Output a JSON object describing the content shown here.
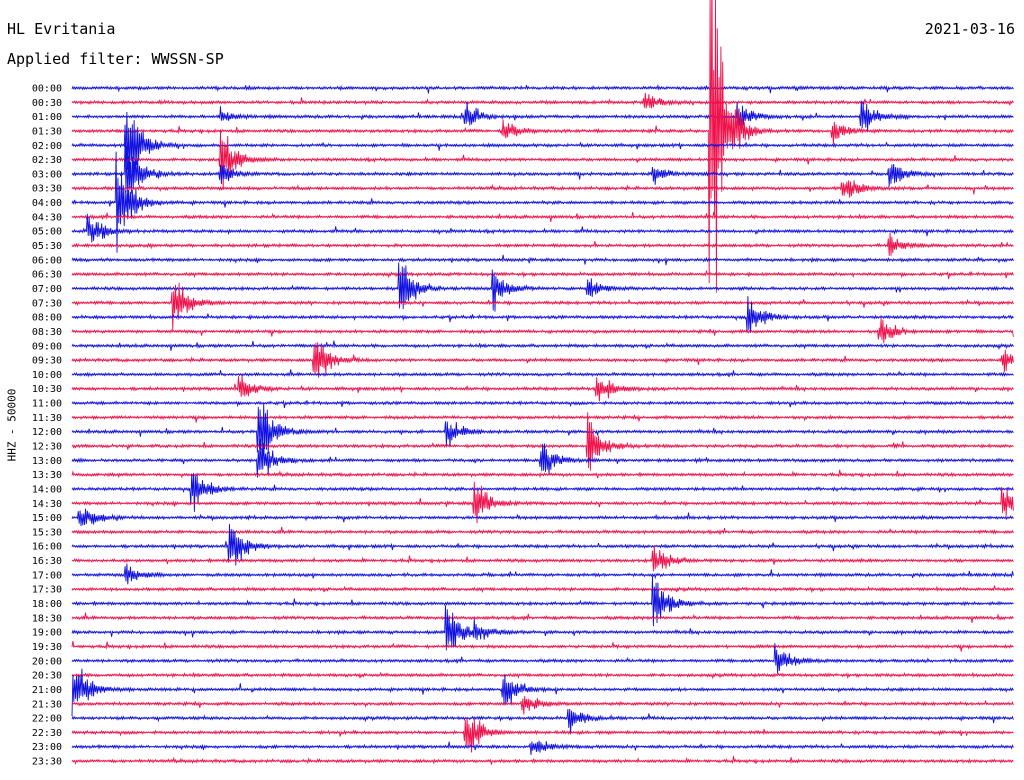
{
  "header": {
    "station": "HL Evritania",
    "date": "2021-03-16",
    "filter": "Applied filter: WWSSN-SP"
  },
  "colors": {
    "trace_a": "#1010e0",
    "trace_b": "#f0104a",
    "text": "#000000"
  },
  "chart_data": {
    "type": "line",
    "title": "HL Evritania",
    "ylabel": "HHZ - 50000",
    "xlabel": "",
    "y_tick_labels": [
      "00:00",
      "00:30",
      "01:00",
      "01:30",
      "02:00",
      "02:30",
      "03:00",
      "03:30",
      "04:00",
      "04:30",
      "05:00",
      "05:30",
      "06:00",
      "06:30",
      "07:00",
      "07:30",
      "08:00",
      "08:30",
      "09:00",
      "09:30",
      "10:00",
      "10:30",
      "11:00",
      "11:30",
      "12:00",
      "12:30",
      "13:00",
      "13:30",
      "14:00",
      "14:30",
      "15:00",
      "15:30",
      "16:00",
      "16:30",
      "17:00",
      "17:30",
      "18:00",
      "18:30",
      "19:00",
      "19:30",
      "20:00",
      "20:30",
      "21:00",
      "21:30",
      "22:00",
      "22:30",
      "23:00",
      "23:30"
    ],
    "trace_colors": [
      "#1010e0",
      "#f0104a"
    ],
    "x_range_minutes": [
      0,
      30
    ],
    "events": [
      {
        "row": 1,
        "t": 0.61,
        "amp": 1.0
      },
      {
        "row": 2,
        "t": 0.16,
        "amp": 0.6
      },
      {
        "row": 2,
        "t": 0.42,
        "amp": 1.4
      },
      {
        "row": 2,
        "t": 0.71,
        "amp": 1.6
      },
      {
        "row": 2,
        "t": 0.84,
        "amp": 2.0
      },
      {
        "row": 3,
        "t": 0.46,
        "amp": 1.0
      },
      {
        "row": 3,
        "t": 0.68,
        "amp": 18.0
      },
      {
        "row": 3,
        "t": 0.81,
        "amp": 1.0
      },
      {
        "row": 4,
        "t": 0.06,
        "amp": 5.0
      },
      {
        "row": 5,
        "t": 0.16,
        "amp": 3.0
      },
      {
        "row": 6,
        "t": 0.06,
        "amp": 4.0
      },
      {
        "row": 6,
        "t": 0.16,
        "amp": 1.0
      },
      {
        "row": 6,
        "t": 0.62,
        "amp": 0.8
      },
      {
        "row": 6,
        "t": 0.87,
        "amp": 1.5
      },
      {
        "row": 7,
        "t": 0.82,
        "amp": 1.5
      },
      {
        "row": 8,
        "t": 0.05,
        "amp": 5.0
      },
      {
        "row": 10,
        "t": 0.02,
        "amp": 1.6
      },
      {
        "row": 11,
        "t": 0.87,
        "amp": 1.0
      },
      {
        "row": 14,
        "t": 0.35,
        "amp": 3.5
      },
      {
        "row": 14,
        "t": 0.45,
        "amp": 1.8
      },
      {
        "row": 14,
        "t": 0.55,
        "amp": 1.2
      },
      {
        "row": 15,
        "t": 0.11,
        "amp": 2.5
      },
      {
        "row": 16,
        "t": 0.72,
        "amp": 2.0
      },
      {
        "row": 17,
        "t": 0.86,
        "amp": 1.5
      },
      {
        "row": 19,
        "t": 0.26,
        "amp": 2.5
      },
      {
        "row": 19,
        "t": 0.99,
        "amp": 1.5
      },
      {
        "row": 21,
        "t": 0.18,
        "amp": 1.2
      },
      {
        "row": 21,
        "t": 0.56,
        "amp": 1.6
      },
      {
        "row": 24,
        "t": 0.2,
        "amp": 4.0
      },
      {
        "row": 24,
        "t": 0.4,
        "amp": 1.5
      },
      {
        "row": 25,
        "t": 0.55,
        "amp": 3.0
      },
      {
        "row": 26,
        "t": 0.2,
        "amp": 2.5
      },
      {
        "row": 26,
        "t": 0.5,
        "amp": 2.2
      },
      {
        "row": 28,
        "t": 0.13,
        "amp": 2.2
      },
      {
        "row": 29,
        "t": 0.43,
        "amp": 2.2
      },
      {
        "row": 29,
        "t": 0.99,
        "amp": 1.5
      },
      {
        "row": 30,
        "t": 0.01,
        "amp": 1.5
      },
      {
        "row": 32,
        "t": 0.17,
        "amp": 2.5
      },
      {
        "row": 33,
        "t": 0.62,
        "amp": 1.5
      },
      {
        "row": 34,
        "t": 0.06,
        "amp": 1.0
      },
      {
        "row": 36,
        "t": 0.62,
        "amp": 2.8
      },
      {
        "row": 38,
        "t": 0.4,
        "amp": 2.8
      },
      {
        "row": 38,
        "t": 0.43,
        "amp": 1.0
      },
      {
        "row": 40,
        "t": 0.75,
        "amp": 1.6
      },
      {
        "row": 42,
        "t": 0.0,
        "amp": 4.5
      },
      {
        "row": 42,
        "t": 0.46,
        "amp": 2.0
      },
      {
        "row": 43,
        "t": 0.48,
        "amp": 1.0
      },
      {
        "row": 44,
        "t": 0.53,
        "amp": 1.4
      },
      {
        "row": 45,
        "t": 0.42,
        "amp": 2.8
      },
      {
        "row": 46,
        "t": 0.49,
        "amp": 1.0
      }
    ]
  }
}
